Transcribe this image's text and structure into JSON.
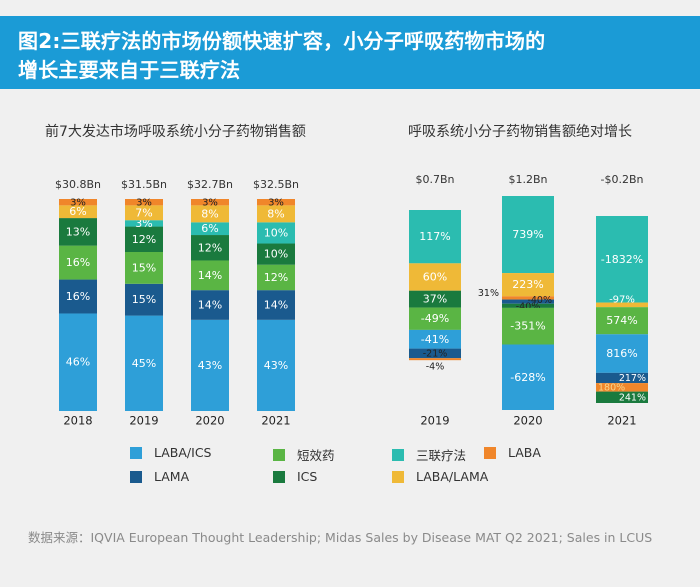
{
  "header": {
    "line1": "图2:三联疗法的市场份额快速扩容，小分子呼吸药物市场的",
    "line2": "增长主要来自于三联疗法"
  },
  "colors": {
    "LABA_ICS": "#2e9fd8",
    "SABA": "#5ab544",
    "triple": "#2bbcb0",
    "LABA": "#f0862a",
    "LAMA": "#1a5a8e",
    "ICS": "#1a7a3e",
    "LABA_LAMA": "#efb937"
  },
  "legend": [
    {
      "key": "LABA_ICS",
      "label": "LABA/ICS"
    },
    {
      "key": "SABA",
      "label": "短效药"
    },
    {
      "key": "triple",
      "label": "三联疗法"
    },
    {
      "key": "LABA",
      "label": "LABA"
    },
    {
      "key": "LAMA",
      "label": "LAMA"
    },
    {
      "key": "ICS",
      "label": "ICS"
    },
    {
      "key": "LABA_LAMA",
      "label": "LABA/LAMA"
    }
  ],
  "chart_data": [
    {
      "type": "bar",
      "subtype": "stacked-percent",
      "title": "前7大发达市场呼吸系统小分子药物销售额",
      "categories": [
        "2018",
        "2019",
        "2020",
        "2021"
      ],
      "totals": [
        "$30.8Bn",
        "$31.5Bn",
        "$32.7Bn",
        "$32.5Bn"
      ],
      "stack_order_bottom_to_top": [
        "LABA_ICS",
        "LAMA",
        "SABA",
        "ICS",
        "triple",
        "LABA_LAMA",
        "LABA"
      ],
      "series": [
        {
          "name": "LABA/ICS",
          "key": "LABA_ICS",
          "values": [
            46,
            45,
            43,
            43
          ]
        },
        {
          "name": "LAMA",
          "key": "LAMA",
          "values": [
            16,
            15,
            14,
            14
          ]
        },
        {
          "name": "短效药",
          "key": "SABA",
          "values": [
            16,
            15,
            14,
            12
          ]
        },
        {
          "name": "ICS",
          "key": "ICS",
          "values": [
            13,
            12,
            12,
            10
          ]
        },
        {
          "name": "三联疗法",
          "key": "triple",
          "values": [
            0,
            3,
            6,
            10
          ]
        },
        {
          "name": "LABA/LAMA",
          "key": "LABA_LAMA",
          "values": [
            6,
            7,
            8,
            8
          ]
        },
        {
          "name": "LABA",
          "key": "LABA",
          "values": [
            3,
            3,
            3,
            3
          ]
        }
      ],
      "ylim": [
        0,
        100
      ],
      "unit": "%"
    },
    {
      "type": "bar",
      "subtype": "waterfall-contribution",
      "title": "呼吸系统小分子药物销售额绝对增长",
      "categories": [
        "2019",
        "2020",
        "2021"
      ],
      "totals": [
        "$0.7Bn",
        "$1.2Bn",
        "-$0.2Bn"
      ],
      "unit": "% contribution to absolute growth",
      "columns": [
        {
          "year": "2019",
          "segments": [
            {
              "key": "triple",
              "value": 117,
              "label": "117%"
            },
            {
              "key": "LABA_LAMA",
              "value": 60,
              "label": "60%"
            },
            {
              "key": "ICS",
              "value": 37,
              "label": "37%"
            },
            {
              "key": "SABA",
              "value": -49,
              "label": "-49%"
            },
            {
              "key": "LABA_ICS",
              "value": -41,
              "label": "-41%"
            },
            {
              "key": "LAMA",
              "value": -21,
              "label": "-21%"
            },
            {
              "key": "LABA",
              "value": -4,
              "label": "-4%"
            }
          ]
        },
        {
          "year": "2020",
          "segments": [
            {
              "key": "triple",
              "value": 739,
              "label": "739%"
            },
            {
              "key": "LABA_LAMA",
              "value": 223,
              "label": "223%"
            },
            {
              "key": "LABA",
              "value": 31,
              "label": "31%"
            },
            {
              "key": "LAMA",
              "value": -40,
              "label": "-40%"
            },
            {
              "key": "ICS",
              "value": -40,
              "label": "-40%"
            },
            {
              "key": "SABA",
              "value": -351,
              "label": "-351%"
            },
            {
              "key": "LABA_ICS",
              "value": -628,
              "label": "-628%"
            }
          ]
        },
        {
          "year": "2021",
          "segments": [
            {
              "key": "triple",
              "value": -1832,
              "label": "-1832%"
            },
            {
              "key": "LABA_LAMA",
              "value": -97,
              "label": "-97%"
            },
            {
              "key": "SABA",
              "value": 574,
              "label": "574%"
            },
            {
              "key": "LABA_ICS",
              "value": 816,
              "label": "816%"
            },
            {
              "key": "LAMA",
              "value": 217,
              "label": "217%"
            },
            {
              "key": "LABA",
              "value": 180,
              "label": "180%"
            },
            {
              "key": "ICS",
              "value": 241,
              "label": "241%"
            }
          ]
        }
      ]
    }
  ],
  "source": "数据来源：IQVIA European Thought Leadership; Midas Sales by  Disease MAT Q2 2021; Sales in LCUS"
}
